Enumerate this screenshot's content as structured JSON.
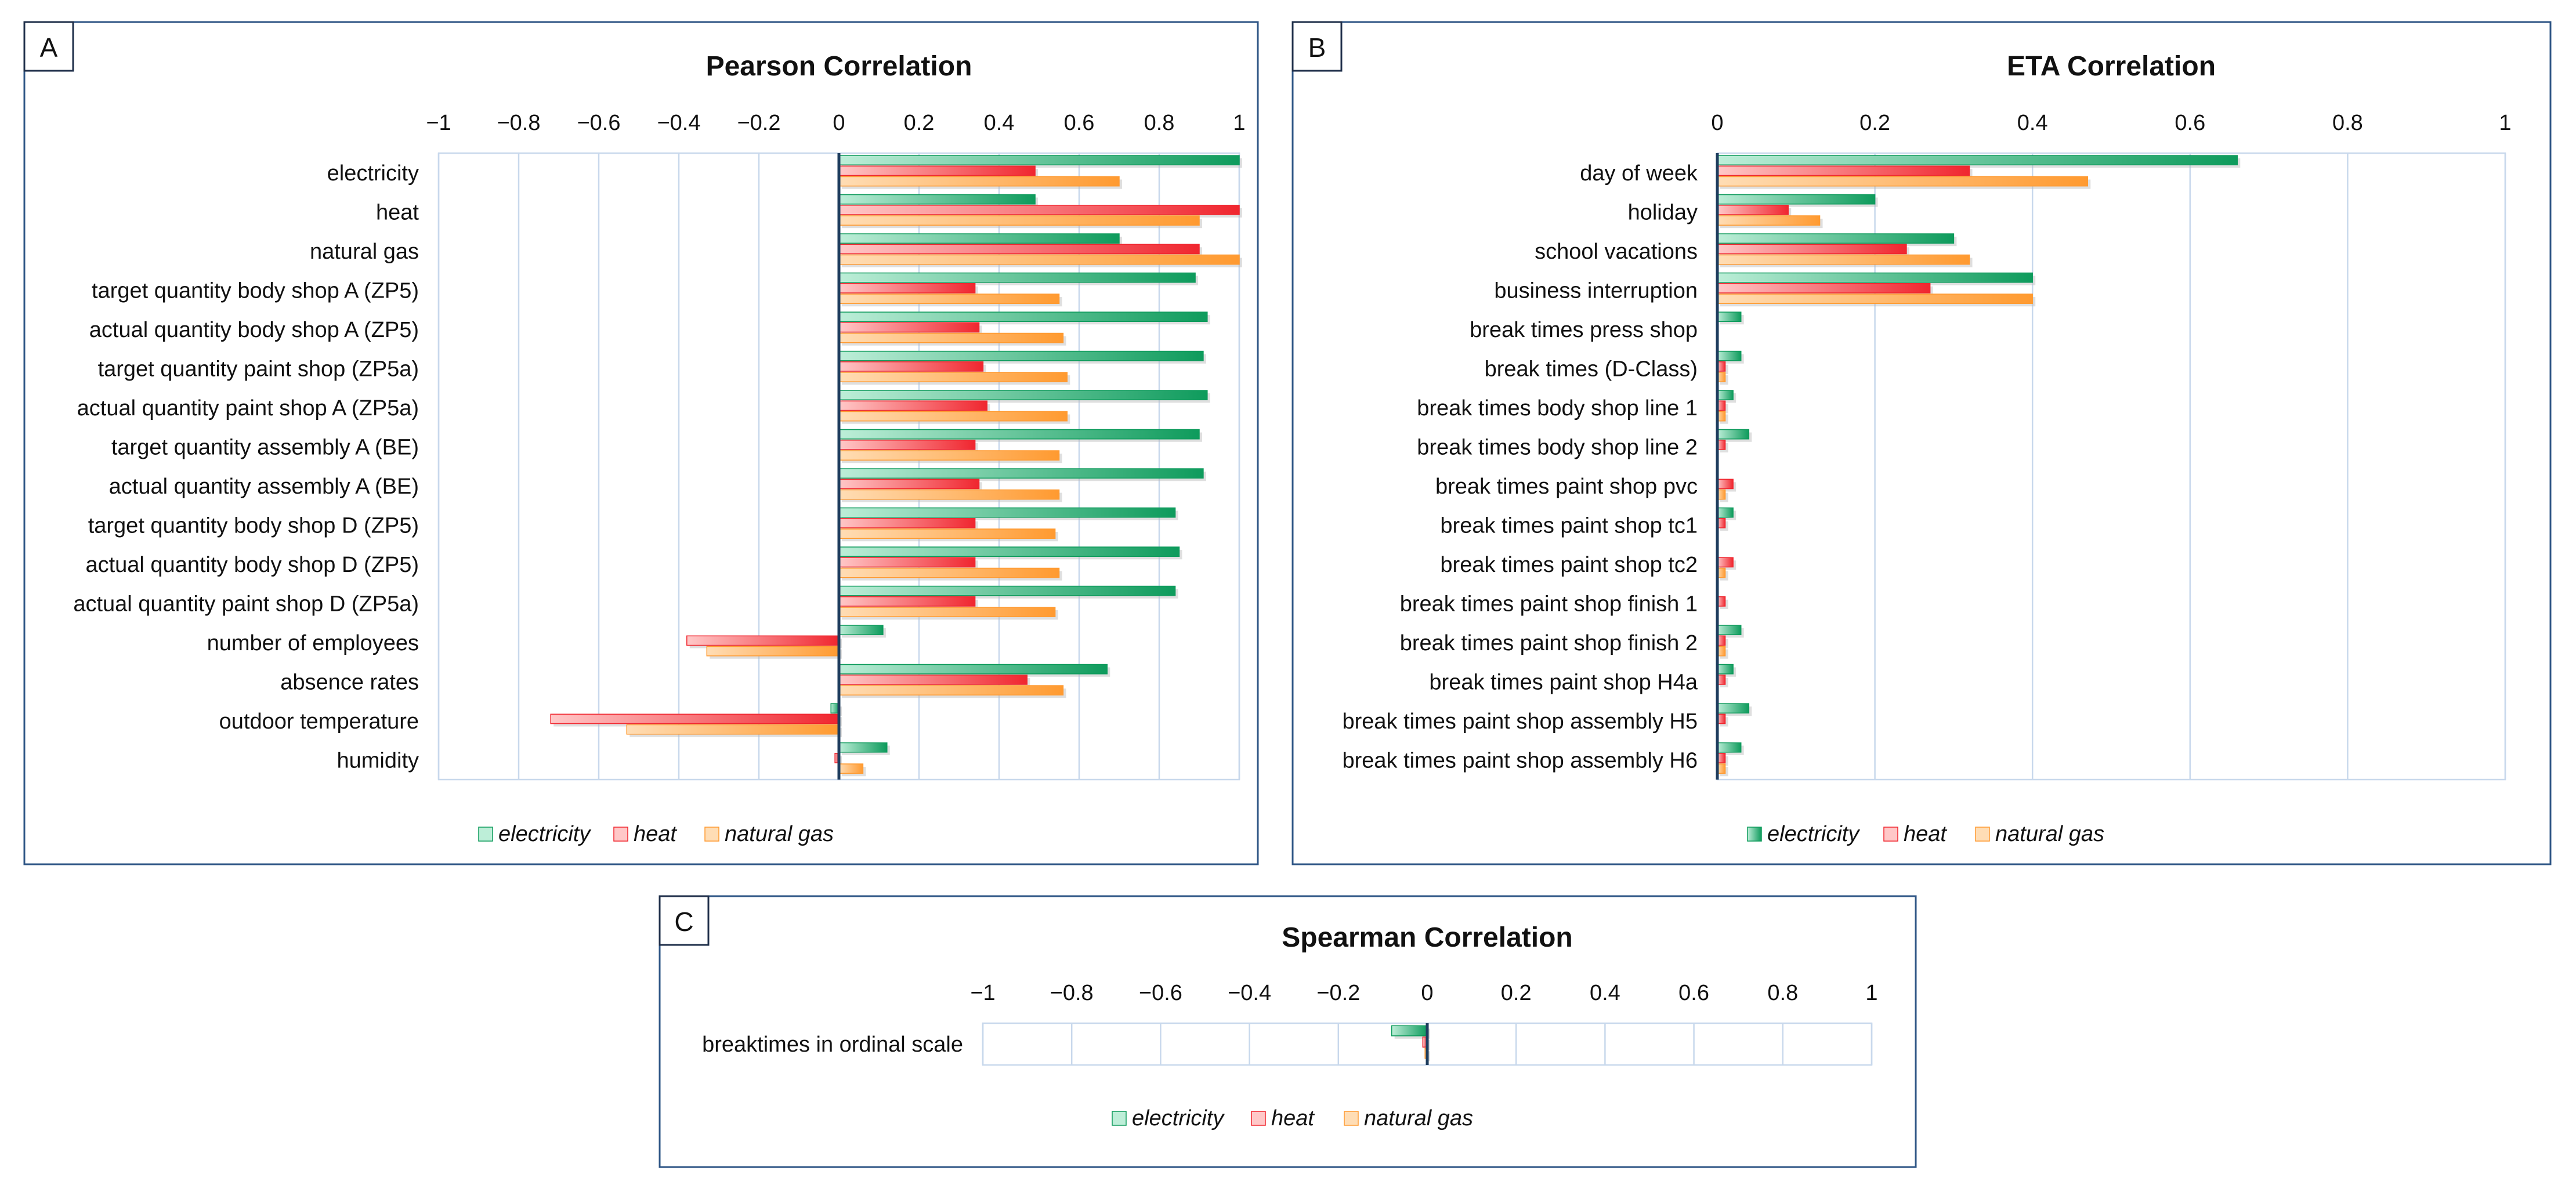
{
  "colors": {
    "electricity": "#0e9b5c",
    "electricity_light": "#bdeed8",
    "heat": "#f0262f",
    "heat_light": "#ffc8c8",
    "natural_gas": "#ff9a30",
    "natural_gas_light": "#ffddb5",
    "frame": "#2e5585",
    "grid": "#c8d8ec"
  },
  "chart_data": [
    {
      "panel": "A",
      "type": "bar",
      "orientation": "horizontal",
      "title": "Pearson Correlation",
      "xlim": [
        -1,
        1
      ],
      "ticks": [
        -1,
        -0.8,
        -0.6,
        -0.4,
        -0.2,
        0,
        0.2,
        0.4,
        0.6,
        0.8,
        1
      ],
      "tick_labels": [
        "−1",
        "−0.8",
        "−0.6",
        "−0.4",
        "−0.2",
        "0",
        "0.2",
        "0.4",
        "0.6",
        "0.8",
        "1"
      ],
      "grid": true,
      "legend_position": "bottom",
      "categories": [
        "electricity",
        "heat",
        "natural gas",
        "target quantity body shop A (ZP5)",
        "actual quantity body shop A (ZP5)",
        "target quantity paint shop (ZP5a)",
        "actual quantity paint shop A (ZP5a)",
        "target quantity assembly A (BE)",
        "actual quantity assembly A (BE) ",
        "target quantity body shop D (ZP5)",
        "actual quantity body shop D (ZP5)",
        "actual quantity paint shop D (ZP5a)",
        "number of employees",
        "absence rates",
        "outdoor temperature",
        "humidity"
      ],
      "series": [
        {
          "name": "electricity",
          "values": [
            1.0,
            0.49,
            0.7,
            0.89,
            0.92,
            0.91,
            0.92,
            0.9,
            0.91,
            0.84,
            0.85,
            0.84,
            0.11,
            0.67,
            -0.02,
            0.12
          ]
        },
        {
          "name": "heat",
          "values": [
            0.49,
            1.0,
            0.9,
            0.34,
            0.35,
            0.36,
            0.37,
            0.34,
            0.35,
            0.34,
            0.34,
            0.34,
            -0.38,
            0.47,
            -0.72,
            -0.01
          ]
        },
        {
          "name": "natural gas",
          "values": [
            0.7,
            0.9,
            1.0,
            0.55,
            0.56,
            0.57,
            0.57,
            0.55,
            0.55,
            0.54,
            0.55,
            0.54,
            -0.33,
            0.56,
            -0.53,
            0.06
          ]
        }
      ],
      "legend": [
        "electricity",
        "heat",
        "natural gas"
      ]
    },
    {
      "panel": "B",
      "type": "bar",
      "orientation": "horizontal",
      "title": "ETA Correlation",
      "xlim": [
        0,
        1
      ],
      "ticks": [
        0,
        0.2,
        0.4,
        0.6,
        0.8,
        1
      ],
      "tick_labels": [
        "0",
        "0.2",
        "0.4",
        "0.6",
        "0.8",
        "1"
      ],
      "grid": true,
      "legend_position": "bottom",
      "categories": [
        "day of week",
        "holiday",
        "school vacations",
        "business interruption",
        "break times press shop",
        "break times (D-Class)",
        "break times body shop line 1",
        "break times body shop line 2",
        "break times paint shop pvc",
        "break times paint shop tc1",
        "break times paint shop tc2",
        "break times paint shop finish 1",
        "break times paint shop finish 2",
        "break times paint shop H4a",
        "break times paint shop assembly H5",
        "break times paint shop assembly H6"
      ],
      "series": [
        {
          "name": "electricity",
          "values": [
            0.66,
            0.2,
            0.3,
            0.4,
            0.03,
            0.03,
            0.02,
            0.04,
            0.0,
            0.02,
            0.0,
            0.0,
            0.03,
            0.02,
            0.04,
            0.03
          ]
        },
        {
          "name": "heat",
          "values": [
            0.32,
            0.09,
            0.24,
            0.27,
            0.0,
            0.01,
            0.01,
            0.01,
            0.02,
            0.01,
            0.02,
            0.01,
            0.01,
            0.01,
            0.01,
            0.01
          ]
        },
        {
          "name": "natural gas",
          "values": [
            0.47,
            0.13,
            0.32,
            0.4,
            0.0,
            0.01,
            0.01,
            0.0,
            0.01,
            0.0,
            0.01,
            0.0,
            0.01,
            0.0,
            0.0,
            0.01
          ]
        }
      ],
      "legend": [
        "electricity",
        "heat",
        "natural gas"
      ]
    },
    {
      "panel": "C",
      "type": "bar",
      "orientation": "horizontal",
      "title": "Spearman Correlation",
      "xlim": [
        -1,
        1
      ],
      "ticks": [
        -1,
        -0.8,
        -0.6,
        -0.4,
        -0.2,
        0,
        0.2,
        0.4,
        0.6,
        0.8,
        1
      ],
      "tick_labels": [
        "−1",
        "−0.8",
        "−0.6",
        "−0.4",
        "−0.2",
        "0",
        "0.2",
        "0.4",
        "0.6",
        "0.8",
        "1"
      ],
      "grid": true,
      "legend_position": "bottom",
      "categories": [
        "breaktimes in ordinal scale"
      ],
      "series": [
        {
          "name": "electricity",
          "values": [
            -0.08
          ]
        },
        {
          "name": "heat",
          "values": [
            -0.01
          ]
        },
        {
          "name": "natural gas",
          "values": [
            -0.005
          ]
        }
      ],
      "legend": [
        "electricity",
        "heat",
        "natural gas"
      ]
    }
  ]
}
